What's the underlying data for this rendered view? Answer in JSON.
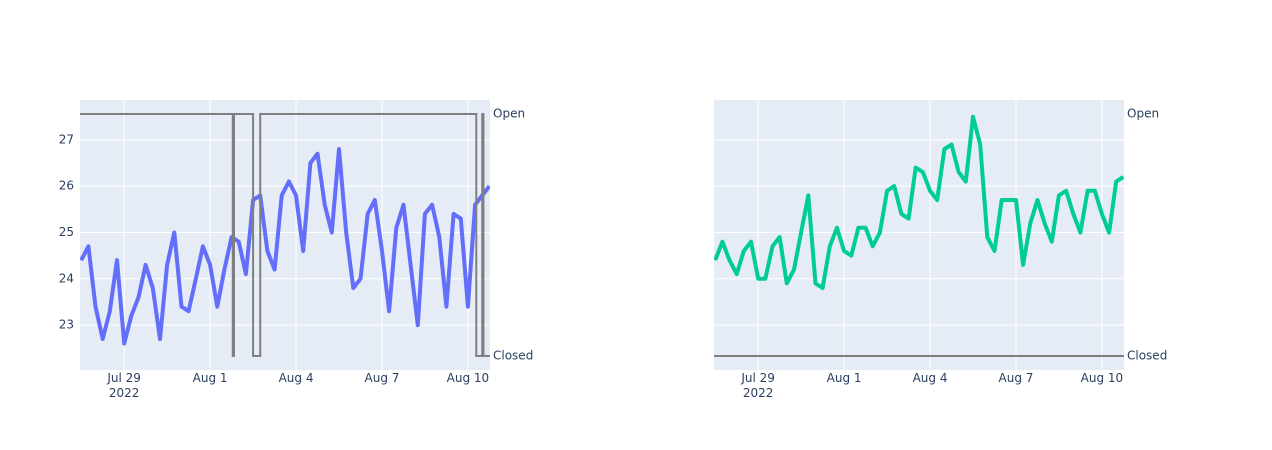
{
  "chart_data": [
    {
      "type": "line",
      "xlim": [
        "2022-07-27 11:00",
        "2022-08-10 18:30"
      ],
      "xticks": [
        {
          "value": "2022-07-29",
          "label": "Jul 29\n2022"
        },
        {
          "value": "2022-08-01",
          "label": "Aug 1"
        },
        {
          "value": "2022-08-04",
          "label": "Aug 4"
        },
        {
          "value": "2022-08-07",
          "label": "Aug 7"
        },
        {
          "value": "2022-08-10",
          "label": "Aug 10"
        }
      ],
      "ylim": [
        22.03,
        27.86
      ],
      "yticks": [
        23,
        24,
        25,
        26,
        27
      ],
      "show_ytick_labels": true,
      "y2lim": [
        -0.058,
        1.058
      ],
      "y2ticks": [
        {
          "value": 0,
          "label": "Closed"
        },
        {
          "value": 1,
          "label": "Open"
        }
      ],
      "grid": true,
      "series": [
        {
          "color": "#636efa",
          "width": 4,
          "x": [
            "2022-07-27 12:00",
            "2022-07-27 18:00",
            "2022-07-28 00:00",
            "2022-07-28 06:00",
            "2022-07-28 12:00",
            "2022-07-28 18:00",
            "2022-07-29 00:00",
            "2022-07-29 06:00",
            "2022-07-29 12:00",
            "2022-07-29 18:00",
            "2022-07-30 00:00",
            "2022-07-30 06:00",
            "2022-07-30 12:00",
            "2022-07-30 18:00",
            "2022-07-31 00:00",
            "2022-07-31 06:00",
            "2022-07-31 12:00",
            "2022-07-31 18:00",
            "2022-08-01 00:00",
            "2022-08-01 06:00",
            "2022-08-01 12:00",
            "2022-08-01 18:00",
            "2022-08-02 00:00",
            "2022-08-02 06:00",
            "2022-08-02 12:00",
            "2022-08-02 18:00",
            "2022-08-03 00:00",
            "2022-08-03 06:00",
            "2022-08-03 12:00",
            "2022-08-03 18:00",
            "2022-08-04 00:00",
            "2022-08-04 06:00",
            "2022-08-04 12:00",
            "2022-08-04 18:00",
            "2022-08-05 00:00",
            "2022-08-05 06:00",
            "2022-08-05 12:00",
            "2022-08-05 18:00",
            "2022-08-06 00:00",
            "2022-08-06 06:00",
            "2022-08-06 12:00",
            "2022-08-06 18:00",
            "2022-08-07 00:00",
            "2022-08-07 06:00",
            "2022-08-07 12:00",
            "2022-08-07 18:00",
            "2022-08-08 00:00",
            "2022-08-08 06:00",
            "2022-08-08 12:00",
            "2022-08-08 18:00",
            "2022-08-09 00:00",
            "2022-08-09 06:00",
            "2022-08-09 12:00",
            "2022-08-09 18:00",
            "2022-08-10 00:00",
            "2022-08-10 06:00",
            "2022-08-10 12:00",
            "2022-08-10 18:00"
          ],
          "values": [
            24.4,
            24.7,
            23.4,
            22.7,
            23.3,
            24.4,
            22.6,
            23.2,
            23.6,
            24.3,
            23.8,
            22.7,
            24.3,
            25.0,
            23.4,
            23.3,
            24.0,
            24.7,
            24.3,
            23.4,
            24.2,
            24.9,
            24.8,
            24.1,
            25.7,
            25.8,
            24.6,
            24.2,
            25.8,
            26.1,
            25.8,
            24.6,
            26.5,
            26.7,
            25.6,
            25.0,
            26.8,
            25.0,
            23.8,
            24.0,
            25.4,
            25.7,
            24.6,
            23.3,
            25.1,
            25.6,
            24.3,
            23.0,
            25.4,
            25.6,
            24.9,
            23.4,
            25.4,
            25.3,
            23.4,
            25.6,
            25.8,
            26.0
          ]
        },
        {
          "color": "#7f7f7f",
          "width": 2,
          "axis": "y2",
          "line_shape": "hv",
          "x": [
            "2022-07-27 11:00",
            "2022-08-01 19:00",
            "2022-08-01 20:00",
            "2022-08-02 12:00",
            "2022-08-02 18:00",
            "2022-08-10 07:00",
            "2022-08-10 12:00",
            "2022-08-10 13:00",
            "2022-08-10 18:30"
          ],
          "values": [
            1,
            0,
            1,
            0,
            1,
            0,
            1,
            0,
            0
          ]
        }
      ]
    },
    {
      "type": "line",
      "xlim": [
        "2022-07-27 11:00",
        "2022-08-10 18:30"
      ],
      "xticks": [
        {
          "value": "2022-07-29",
          "label": "Jul 29\n2022"
        },
        {
          "value": "2022-08-01",
          "label": "Aug 1"
        },
        {
          "value": "2022-08-04",
          "label": "Aug 4"
        },
        {
          "value": "2022-08-07",
          "label": "Aug 7"
        },
        {
          "value": "2022-08-10",
          "label": "Aug 10"
        }
      ],
      "ylim": [
        22.03,
        27.86
      ],
      "yticks": [
        23,
        24,
        25,
        26,
        27
      ],
      "show_ytick_labels": false,
      "y2lim": [
        -0.058,
        1.058
      ],
      "y2ticks": [
        {
          "value": 0,
          "label": "Closed"
        },
        {
          "value": 1,
          "label": "Open"
        }
      ],
      "grid": true,
      "series": [
        {
          "color": "#00cc96",
          "width": 4,
          "x": [
            "2022-07-27 12:00",
            "2022-07-27 18:00",
            "2022-07-28 00:00",
            "2022-07-28 06:00",
            "2022-07-28 12:00",
            "2022-07-28 18:00",
            "2022-07-29 00:00",
            "2022-07-29 06:00",
            "2022-07-29 12:00",
            "2022-07-29 18:00",
            "2022-07-30 00:00",
            "2022-07-30 06:00",
            "2022-07-30 12:00",
            "2022-07-30 18:00",
            "2022-07-31 00:00",
            "2022-07-31 06:00",
            "2022-07-31 12:00",
            "2022-07-31 18:00",
            "2022-08-01 00:00",
            "2022-08-01 06:00",
            "2022-08-01 12:00",
            "2022-08-01 18:00",
            "2022-08-02 00:00",
            "2022-08-02 06:00",
            "2022-08-02 12:00",
            "2022-08-02 18:00",
            "2022-08-03 00:00",
            "2022-08-03 06:00",
            "2022-08-03 12:00",
            "2022-08-03 18:00",
            "2022-08-04 00:00",
            "2022-08-04 06:00",
            "2022-08-04 12:00",
            "2022-08-04 18:00",
            "2022-08-05 00:00",
            "2022-08-05 06:00",
            "2022-08-05 12:00",
            "2022-08-05 18:00",
            "2022-08-06 00:00",
            "2022-08-06 06:00",
            "2022-08-06 12:00",
            "2022-08-06 18:00",
            "2022-08-07 00:00",
            "2022-08-07 06:00",
            "2022-08-07 12:00",
            "2022-08-07 18:00",
            "2022-08-08 00:00",
            "2022-08-08 06:00",
            "2022-08-08 12:00",
            "2022-08-08 18:00",
            "2022-08-09 00:00",
            "2022-08-09 06:00",
            "2022-08-09 12:00",
            "2022-08-09 18:00",
            "2022-08-10 00:00",
            "2022-08-10 06:00",
            "2022-08-10 12:00",
            "2022-08-10 18:00"
          ],
          "values": [
            24.4,
            24.8,
            24.4,
            24.1,
            24.6,
            24.8,
            24.0,
            24.0,
            24.7,
            24.9,
            23.9,
            24.2,
            25.0,
            25.8,
            23.9,
            23.8,
            24.7,
            25.1,
            24.6,
            24.5,
            25.1,
            25.1,
            24.7,
            25.0,
            25.9,
            26.0,
            25.4,
            25.3,
            26.4,
            26.3,
            25.9,
            25.7,
            26.8,
            26.9,
            26.3,
            26.1,
            27.5,
            26.9,
            24.9,
            24.6,
            25.7,
            25.7,
            25.7,
            24.3,
            25.2,
            25.7,
            25.2,
            24.8,
            25.8,
            25.9,
            25.4,
            25.0,
            25.9,
            25.9,
            25.4,
            25.0,
            26.1,
            26.2
          ]
        },
        {
          "color": "#7f7f7f",
          "width": 2,
          "axis": "y2",
          "line_shape": "hv",
          "x": [
            "2022-07-27 11:00",
            "2022-08-10 18:30"
          ],
          "values": [
            0,
            0
          ]
        }
      ]
    }
  ]
}
